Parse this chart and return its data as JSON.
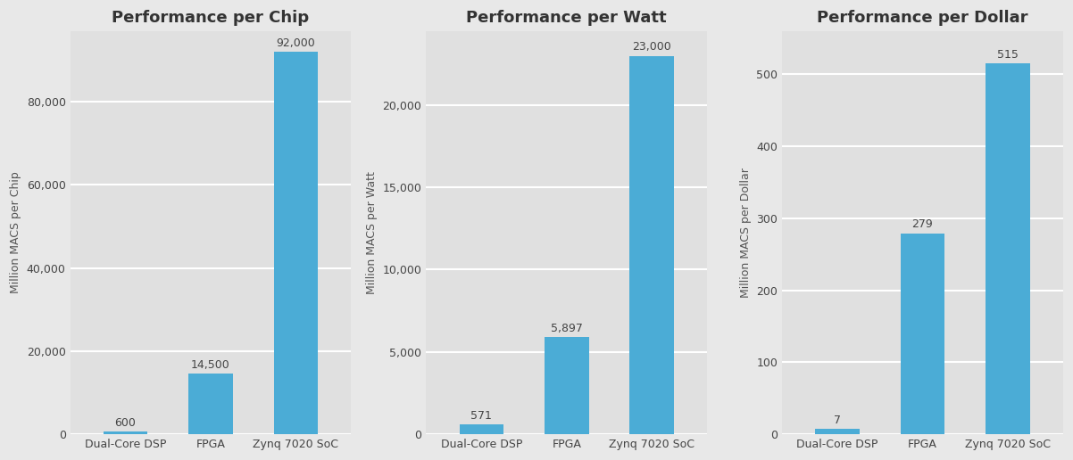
{
  "charts": [
    {
      "title": "Performance per Chip",
      "ylabel": "Million MACS per Chip",
      "categories": [
        "Dual-Core DSP",
        "FPGA",
        "Zynq 7020 SoC"
      ],
      "values": [
        600,
        14500,
        92000
      ],
      "ylim": [
        0,
        97000
      ],
      "yticks": [
        0,
        20000,
        40000,
        60000,
        80000
      ],
      "ytick_labels": [
        "0",
        "20,000",
        "40,000",
        "60,000",
        "80,000"
      ],
      "bar_labels": [
        "600",
        "14,500",
        "92,000"
      ]
    },
    {
      "title": "Performance per Watt",
      "ylabel": "Million MACS per Watt",
      "categories": [
        "Dual-Core DSP",
        "FPGA",
        "Zynq 7020 SoC"
      ],
      "values": [
        571,
        5897,
        23000
      ],
      "ylim": [
        0,
        24500
      ],
      "yticks": [
        0,
        5000,
        10000,
        15000,
        20000
      ],
      "ytick_labels": [
        "0",
        "5,000",
        "10,000",
        "15,000",
        "20,000"
      ],
      "bar_labels": [
        "571",
        "5,897",
        "23,000"
      ]
    },
    {
      "title": "Performance per Dollar",
      "ylabel": "Million MACS per Dollar",
      "categories": [
        "Dual-Core DSP",
        "FPGA",
        "Zynq 7020 SoC"
      ],
      "values": [
        7,
        279,
        515
      ],
      "ylim": [
        0,
        560
      ],
      "yticks": [
        0,
        100,
        200,
        300,
        400,
        500
      ],
      "ytick_labels": [
        "0",
        "100",
        "200",
        "300",
        "400",
        "500"
      ],
      "bar_labels": [
        "7",
        "279",
        "515"
      ]
    }
  ],
  "bar_color": "#4BACD6",
  "bg_color": "#E0E0E0",
  "fig_bg_color": "#E8E8E8",
  "title_fontsize": 13,
  "label_fontsize": 9,
  "tick_fontsize": 9,
  "bar_label_fontsize": 9,
  "xlabel_fontsize": 9,
  "grid_color": "#FFFFFF",
  "grid_linewidth": 1.5,
  "bar_width": 0.52
}
